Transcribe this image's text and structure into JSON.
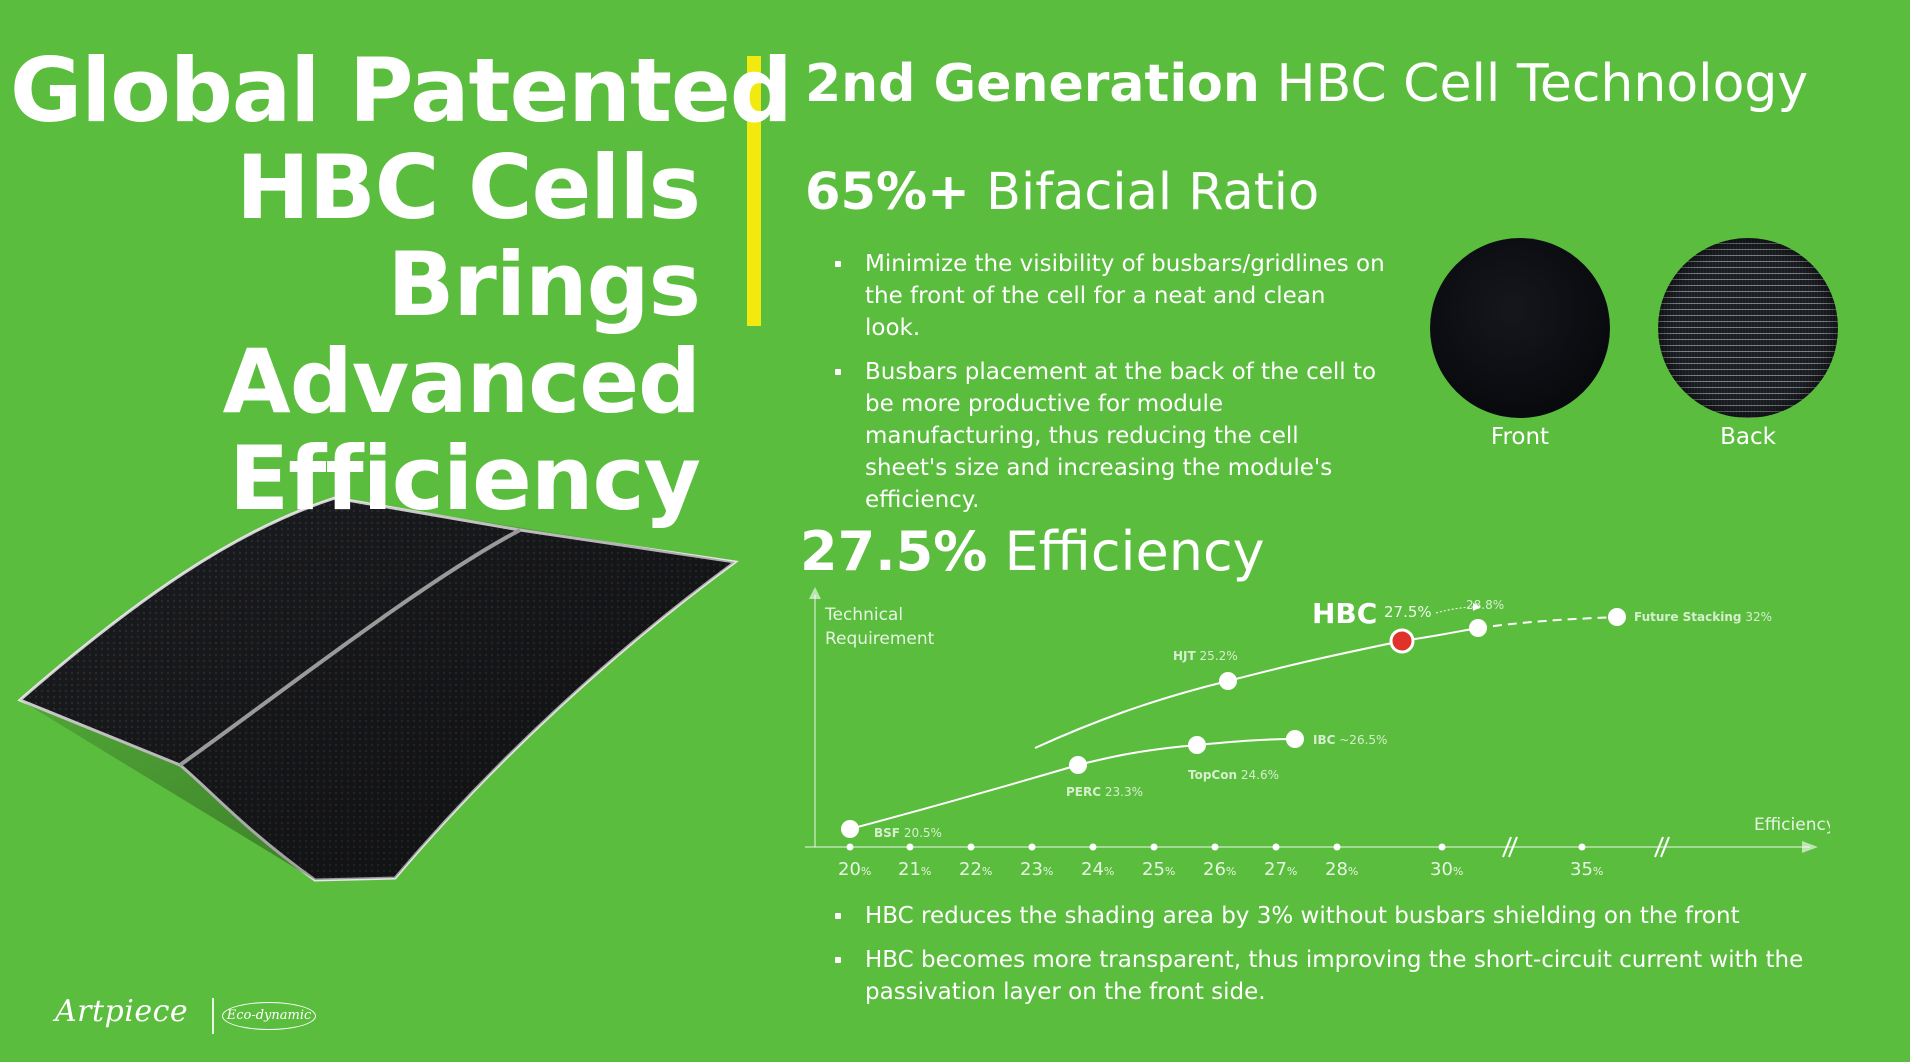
{
  "headline": {
    "lines": [
      "Global Patented",
      "HBC Cells",
      "Brings",
      "Advanced",
      "Efficiency"
    ]
  },
  "title": {
    "bold": "2nd Generation",
    "regular": "HBC Cell Technology"
  },
  "bifacial": {
    "bold": "65%+",
    "regular": "Bifacial Ratio",
    "bullets": [
      "Minimize the visibility of busbars/gridlines on the front of the cell for a neat and clean look.",
      "Busbars placement at the back of the cell to be more productive for module manufacturing, thus reducing the cell sheet's size and increasing the module's efficiency."
    ],
    "front_label": "Front",
    "back_label": "Back"
  },
  "efficiency": {
    "bold": "27.5%",
    "regular": "Efficiency",
    "bullets": [
      "HBC reduces the shading area by 3% without busbars shielding on the front",
      "HBC becomes more transparent, thus improving the short-circuit current with the passivation layer on the front side."
    ]
  },
  "chart_data": {
    "type": "line",
    "ylabel_lines": [
      "Technical",
      "Requirement"
    ],
    "xlabel": "Efficiency",
    "x_ticks": [
      "20",
      "21",
      "22",
      "23",
      "24",
      "25",
      "26",
      "27",
      "28",
      "30",
      "35"
    ],
    "tick_unit": "%",
    "points": [
      {
        "name": "BSF",
        "value": "20.5%"
      },
      {
        "name": "PERC",
        "value": "23.3%"
      },
      {
        "name": "TopCon",
        "value": "24.6%"
      },
      {
        "name": "IBC",
        "value": "~26.5%"
      },
      {
        "name": "HJT",
        "value": "25.2%"
      },
      {
        "name": "HBC",
        "value": "27.5%"
      },
      {
        "name": "",
        "value": "28.8%"
      },
      {
        "name": "Future Stacking",
        "value": "32%"
      }
    ],
    "colors": {
      "highlight": "#e0322b",
      "line": "#ffffff"
    }
  },
  "logo": {
    "brand": "Artpiece",
    "badge": "Eco-dynamic"
  }
}
